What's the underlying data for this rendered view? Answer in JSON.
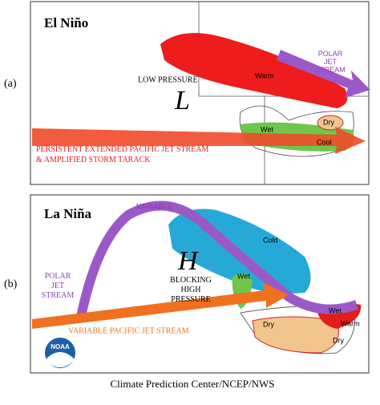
{
  "panel_a": {
    "label": "(a)",
    "title": "El Niño",
    "low_pressure": "LOW PRESSURE",
    "symbol": "L",
    "warm": "Warm",
    "polar_jet": [
      "POLAR",
      "JET",
      "STREAM"
    ],
    "dry": "Dry",
    "wet": "Wet",
    "cool": "Cool",
    "pacific_jet": [
      "PERSISTENT EXTENDED PACIFIC JET STREAM",
      "& AMPLIFIED STORM TARACK"
    ]
  },
  "panel_b": {
    "label": "(b)",
    "title": "La Niña",
    "variable": "VARIABLE",
    "cold": "Cold",
    "wet_nw": "Wet",
    "symbol": "H",
    "blocking": [
      "BLOCKING",
      "HIGH",
      "PRESSURE"
    ],
    "polar_jet": [
      "POLAR",
      "JET",
      "STREAM"
    ],
    "pacific_jet": "VARIABLE PACIFIC JET STREAM",
    "dry_sw": "Dry",
    "wet_se": "Wet",
    "warm": "Warm",
    "dry_s": "Dry"
  },
  "logo": "NOAA",
  "credit": "Climate Prediction Center/NCEP/NWS"
}
